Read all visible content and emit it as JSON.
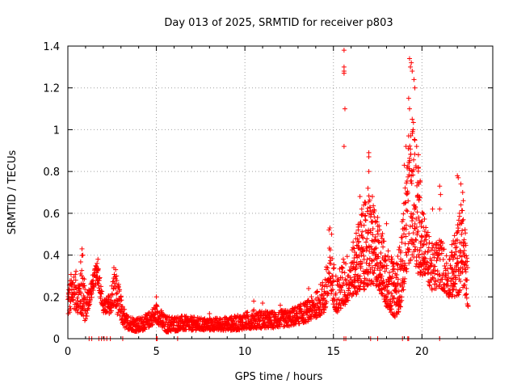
{
  "chart_data": {
    "type": "scatter",
    "title": "Day 013 of 2025, SRMTID for receiver p803",
    "xlabel": "GPS time / hours",
    "ylabel": "SRMTID / TECUs",
    "xlim": [
      0,
      24
    ],
    "ylim": [
      0,
      1.4
    ],
    "xticks": [
      "0",
      "5",
      "10",
      "15",
      "20"
    ],
    "xtick_values": [
      0,
      5,
      10,
      15,
      20
    ],
    "yticks": [
      "0",
      "0.2",
      "0.4",
      "0.6",
      "0.8",
      "1",
      "1.2",
      "1.4"
    ],
    "ytick_values": [
      0,
      0.2,
      0.4,
      0.6,
      0.8,
      1.0,
      1.2,
      1.4
    ],
    "grid": true,
    "marker": "+",
    "color": "#ff0000",
    "profile_note": "approximate envelope of the dense point cloud: [hour, min, max]",
    "profile": [
      [
        0.0,
        0.1,
        0.26
      ],
      [
        0.3,
        0.15,
        0.35
      ],
      [
        0.6,
        0.12,
        0.3
      ],
      [
        0.8,
        0.1,
        0.43
      ],
      [
        1.0,
        0.08,
        0.22
      ],
      [
        1.5,
        0.25,
        0.33
      ],
      [
        1.7,
        0.27,
        0.38
      ],
      [
        2.0,
        0.12,
        0.18
      ],
      [
        2.4,
        0.12,
        0.22
      ],
      [
        2.6,
        0.15,
        0.34
      ],
      [
        2.9,
        0.1,
        0.25
      ],
      [
        3.2,
        0.05,
        0.12
      ],
      [
        4.0,
        0.03,
        0.1
      ],
      [
        4.5,
        0.05,
        0.12
      ],
      [
        5.0,
        0.08,
        0.17
      ],
      [
        5.5,
        0.03,
        0.11
      ],
      [
        6.5,
        0.04,
        0.11
      ],
      [
        7.5,
        0.04,
        0.1
      ],
      [
        8.5,
        0.04,
        0.1
      ],
      [
        9.5,
        0.04,
        0.11
      ],
      [
        10.5,
        0.05,
        0.14
      ],
      [
        11.5,
        0.05,
        0.13
      ],
      [
        12.5,
        0.06,
        0.14
      ],
      [
        13.5,
        0.08,
        0.18
      ],
      [
        14.0,
        0.1,
        0.22
      ],
      [
        14.5,
        0.12,
        0.3
      ],
      [
        14.8,
        0.2,
        0.45
      ],
      [
        15.2,
        0.12,
        0.3
      ],
      [
        15.6,
        0.15,
        0.4
      ],
      [
        16.0,
        0.2,
        0.42
      ],
      [
        16.5,
        0.22,
        0.6
      ],
      [
        17.0,
        0.25,
        0.7
      ],
      [
        17.5,
        0.25,
        0.58
      ],
      [
        18.0,
        0.15,
        0.45
      ],
      [
        18.5,
        0.1,
        0.35
      ],
      [
        18.8,
        0.15,
        0.48
      ],
      [
        19.2,
        0.35,
        0.9
      ],
      [
        19.5,
        0.4,
        1.05
      ],
      [
        19.8,
        0.3,
        0.85
      ],
      [
        20.2,
        0.3,
        0.55
      ],
      [
        20.6,
        0.22,
        0.45
      ],
      [
        21.0,
        0.25,
        0.5
      ],
      [
        21.5,
        0.2,
        0.4
      ],
      [
        22.0,
        0.2,
        0.55
      ],
      [
        22.3,
        0.25,
        0.72
      ],
      [
        22.6,
        0.15,
        0.35
      ]
    ],
    "outliers": [
      [
        15.6,
        1.38
      ],
      [
        15.6,
        1.3
      ],
      [
        15.6,
        1.28
      ],
      [
        15.6,
        1.27
      ],
      [
        15.65,
        1.1
      ],
      [
        15.6,
        0.92
      ],
      [
        19.3,
        1.34
      ],
      [
        19.4,
        1.32
      ],
      [
        19.35,
        1.3
      ],
      [
        19.45,
        1.28
      ],
      [
        19.55,
        1.24
      ],
      [
        19.6,
        1.2
      ],
      [
        19.25,
        1.15
      ],
      [
        19.3,
        1.1
      ],
      [
        19.45,
        1.05
      ],
      [
        19.5,
        1.0
      ],
      [
        19.25,
        0.97
      ],
      [
        19.7,
        0.92
      ],
      [
        19.6,
        0.95
      ],
      [
        19.8,
        0.88
      ],
      [
        19.8,
        0.82
      ],
      [
        19.0,
        0.83
      ],
      [
        19.1,
        0.92
      ],
      [
        19.4,
        0.78
      ],
      [
        19.9,
        0.75
      ],
      [
        19.85,
        0.68
      ],
      [
        17.0,
        0.89
      ],
      [
        17.0,
        0.87
      ],
      [
        17.0,
        0.8
      ],
      [
        16.6,
        0.62
      ],
      [
        16.95,
        0.72
      ],
      [
        17.2,
        0.68
      ],
      [
        16.5,
        0.68
      ],
      [
        21.0,
        0.73
      ],
      [
        21.05,
        0.69
      ],
      [
        21.0,
        0.62
      ],
      [
        22.0,
        0.78
      ],
      [
        22.05,
        0.77
      ],
      [
        22.2,
        0.74
      ],
      [
        22.3,
        0.7
      ],
      [
        0.8,
        0.43
      ],
      [
        0.85,
        0.4
      ],
      [
        1.7,
        0.38
      ],
      [
        1.65,
        0.36
      ],
      [
        2.6,
        0.34
      ],
      [
        2.7,
        0.33
      ],
      [
        2.75,
        0.3
      ],
      [
        14.8,
        0.53
      ],
      [
        14.75,
        0.52
      ],
      [
        14.9,
        0.5
      ],
      [
        16.4,
        0.52
      ],
      [
        17.5,
        0.58
      ],
      [
        18.0,
        0.55
      ],
      [
        20.6,
        0.62
      ],
      [
        5.0,
        0.2
      ],
      [
        10.5,
        0.18
      ],
      [
        11.0,
        0.17
      ],
      [
        13.6,
        0.24
      ],
      [
        12.0,
        0.16
      ],
      [
        8.0,
        0.12
      ],
      [
        3.2,
        0.14
      ]
    ],
    "zero_points": [
      1.2,
      1.35,
      1.75,
      1.9,
      2.05,
      2.2,
      2.4,
      3.1,
      5.0,
      5.05,
      6.2,
      15.6,
      15.7,
      17.1,
      17.5,
      18.9,
      19.2,
      19.25,
      21.0
    ]
  }
}
